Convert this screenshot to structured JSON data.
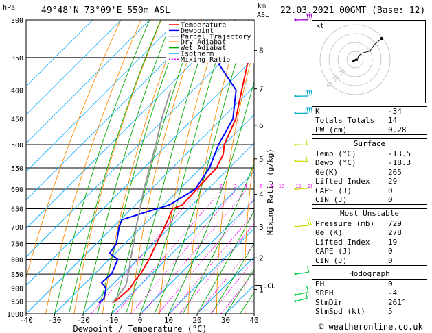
{
  "header": {
    "location": "49°48'N  73°09'E  550m  ASL",
    "datetime": "22.03.2021  00GMT  (Base: 12)",
    "hpa_label": "hPa",
    "km_label": "km",
    "asl_label": "ASL"
  },
  "legend": [
    {
      "label": "Temperature",
      "color": "#ff0000",
      "dash": ""
    },
    {
      "label": "Dewpoint",
      "color": "#0000ff",
      "dash": ""
    },
    {
      "label": "Parcel Trajectory",
      "color": "#999999",
      "dash": ""
    },
    {
      "label": "Dry Adiabat",
      "color": "#ff8c00",
      "dash": ""
    },
    {
      "label": "Wet Adiabat",
      "color": "#00aa00",
      "dash": ""
    },
    {
      "label": "Isotherm",
      "color": "#00aaff",
      "dash": ""
    },
    {
      "label": "Mixing Ratio",
      "color": "#ff00ff",
      "dash": "2,2"
    }
  ],
  "chart_data": {
    "type": "line",
    "xlabel": "Dewpoint / Temperature (°C)",
    "ylabel_right": "Mixing Ratio (g/kg)",
    "xlim": [
      -40,
      40
    ],
    "ylim": [
      1000,
      300
    ],
    "y_scale": "log",
    "skew_isotherms": true,
    "x_ticks": [
      "-40",
      "-30",
      "-20",
      "-10",
      "0",
      "10",
      "20",
      "30",
      "40"
    ],
    "pressure_ticks": [
      300,
      350,
      400,
      450,
      500,
      550,
      600,
      650,
      700,
      750,
      800,
      850,
      900,
      950,
      1000
    ],
    "km_ticks": [
      {
        "label": "8",
        "p": 340
      },
      {
        "label": "7",
        "p": 398
      },
      {
        "label": "6",
        "p": 462
      },
      {
        "label": "5",
        "p": 530
      },
      {
        "label": "4",
        "p": 613
      },
      {
        "label": "3",
        "p": 700
      },
      {
        "label": "2",
        "p": 795
      },
      {
        "label": "1",
        "p": 905
      }
    ],
    "lcl": {
      "label": "LCL",
      "p": 890
    },
    "mixing_ratio_labels": [
      "1",
      "2",
      "3",
      "4",
      "6",
      "8",
      "10",
      "15",
      "20",
      "25"
    ],
    "series": [
      {
        "name": "Temperature",
        "color": "#ff0000",
        "points": [
          [
            956,
            -13.5
          ],
          [
            940,
            -13.0
          ],
          [
            900,
            -12.5
          ],
          [
            875,
            -13.5
          ],
          [
            850,
            -13.8
          ],
          [
            800,
            -16.0
          ],
          [
            750,
            -19.0
          ],
          [
            700,
            -22.0
          ],
          [
            650,
            -25.5
          ],
          [
            640,
            -23.5
          ],
          [
            600,
            -24.0
          ],
          [
            550,
            -24.5
          ],
          [
            520,
            -27.0
          ],
          [
            500,
            -30.0
          ],
          [
            450,
            -35.0
          ],
          [
            400,
            -43.0
          ],
          [
            350,
            -52.0
          ],
          [
            300,
            -59.0
          ]
        ]
      },
      {
        "name": "Dewpoint",
        "color": "#0000ff",
        "points": [
          [
            956,
            -18.3
          ],
          [
            940,
            -18.0
          ],
          [
            900,
            -21.0
          ],
          [
            880,
            -24.5
          ],
          [
            850,
            -24.0
          ],
          [
            800,
            -27.0
          ],
          [
            780,
            -32.0
          ],
          [
            750,
            -33.0
          ],
          [
            700,
            -38.0
          ],
          [
            680,
            -39.5
          ],
          [
            640,
            -28.0
          ],
          [
            600,
            -24.5
          ],
          [
            550,
            -27.0
          ],
          [
            500,
            -32.0
          ],
          [
            450,
            -36.0
          ],
          [
            400,
            -45.0
          ],
          [
            360,
            -60.0
          ],
          [
            340,
            -63.0
          ],
          [
            300,
            -63.0
          ]
        ]
      },
      {
        "name": "Parcel Trajectory",
        "color": "#999999",
        "points": [
          [
            956,
            -13.5
          ],
          [
            890,
            -15.0
          ],
          [
            850,
            -18.0
          ],
          [
            800,
            -22.5
          ],
          [
            750,
            -27.0
          ],
          [
            700,
            -32.0
          ],
          [
            650,
            -37.0
          ],
          [
            600,
            -42.5
          ],
          [
            550,
            -48.0
          ],
          [
            500,
            -54.0
          ],
          [
            450,
            -61.0
          ],
          [
            400,
            -68.0
          ]
        ]
      }
    ]
  },
  "wind_barbs": [
    {
      "p": 300,
      "color": "#9900cc",
      "dir": 290,
      "flags": 0,
      "full": 4
    },
    {
      "p": 410,
      "color": "#00aacc",
      "dir": 290,
      "flags": 0,
      "full": 3
    },
    {
      "p": 440,
      "color": "#00aacc",
      "dir": 290,
      "flags": 0,
      "full": 3
    },
    {
      "p": 500,
      "color": "#ccdd00",
      "dir": 300,
      "flags": 0,
      "full": 1
    },
    {
      "p": 535,
      "color": "#ccdd00",
      "dir": 300,
      "flags": 0,
      "full": 1
    },
    {
      "p": 600,
      "color": "#ccdd00",
      "dir": 280,
      "flags": 0,
      "full": 0
    },
    {
      "p": 700,
      "color": "#ccdd00",
      "dir": 270,
      "flags": 0,
      "full": 2
    },
    {
      "p": 850,
      "color": "#00cc44",
      "dir": 260,
      "flags": 0,
      "full": 1
    },
    {
      "p": 925,
      "color": "#00cc44",
      "dir": 250,
      "flags": 0,
      "full": 1
    },
    {
      "p": 950,
      "color": "#00cc44",
      "dir": 240,
      "flags": 0,
      "full": 1
    }
  ],
  "hodograph": {
    "label": "kt",
    "ring_labels": [
      "40",
      "30",
      "20"
    ],
    "points": [
      [
        0,
        0
      ],
      [
        2,
        -1
      ],
      [
        3,
        3
      ],
      [
        6,
        6
      ],
      [
        14,
        8
      ],
      [
        18,
        14
      ],
      [
        25,
        20
      ]
    ]
  },
  "indices": {
    "k_label": "K",
    "k": "-34",
    "tt_label": "Totals Totals",
    "tt": "14",
    "pw_label": "PW (cm)",
    "pw": "0.28"
  },
  "surface": {
    "title": "Surface",
    "rows": [
      {
        "label": "Temp (°C)",
        "value": "-13.5"
      },
      {
        "label": "Dewp (°C)",
        "value": "-18.3"
      },
      {
        "label": "θe(K)",
        "value": "265"
      },
      {
        "label": "Lifted Index",
        "value": "29"
      },
      {
        "label": "CAPE (J)",
        "value": "0"
      },
      {
        "label": "CIN (J)",
        "value": "0"
      }
    ]
  },
  "most_unstable": {
    "title": "Most Unstable",
    "rows": [
      {
        "label": "Pressure (mb)",
        "value": "729"
      },
      {
        "label": "θe (K)",
        "value": "278"
      },
      {
        "label": "Lifted Index",
        "value": "19"
      },
      {
        "label": "CAPE (J)",
        "value": "0"
      },
      {
        "label": "CIN (J)",
        "value": "0"
      }
    ]
  },
  "hodograph_stats": {
    "title": "Hodograph",
    "rows": [
      {
        "label": "EH",
        "value": "0"
      },
      {
        "label": "SREH",
        "value": "-4"
      },
      {
        "label": "StmDir",
        "value": "261°"
      },
      {
        "label": "StmSpd (kt)",
        "value": "5"
      }
    ]
  },
  "footer": {
    "copyright": "© weatheronline.co.uk"
  }
}
